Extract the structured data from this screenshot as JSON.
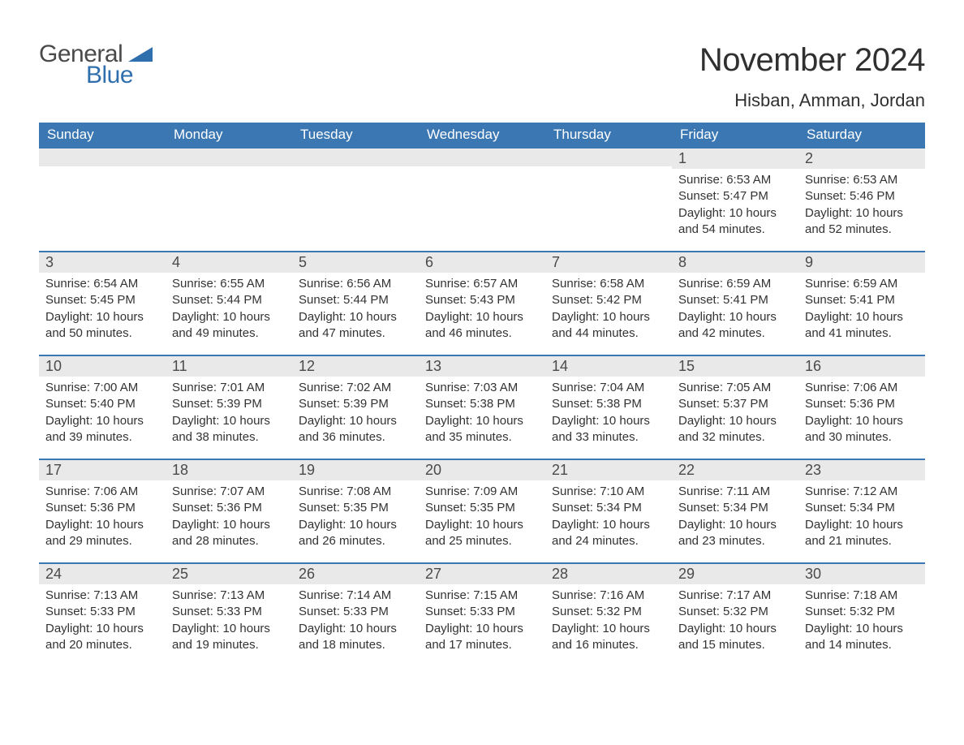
{
  "brand": {
    "word1": "General",
    "word2": "Blue",
    "color_text": "#4a4a4a",
    "color_blue": "#2f6fae"
  },
  "title": "November 2024",
  "location": "Hisban, Amman, Jordan",
  "colors": {
    "header_bg": "#3b77b3",
    "header_text": "#ffffff",
    "daynum_bg": "#e9e9e9",
    "border_top": "#3b77b3",
    "body_text": "#333333"
  },
  "day_headers": [
    "Sunday",
    "Monday",
    "Tuesday",
    "Wednesday",
    "Thursday",
    "Friday",
    "Saturday"
  ],
  "weeks": [
    [
      {
        "n": "",
        "sunrise": "",
        "sunset": "",
        "daylight": ""
      },
      {
        "n": "",
        "sunrise": "",
        "sunset": "",
        "daylight": ""
      },
      {
        "n": "",
        "sunrise": "",
        "sunset": "",
        "daylight": ""
      },
      {
        "n": "",
        "sunrise": "",
        "sunset": "",
        "daylight": ""
      },
      {
        "n": "",
        "sunrise": "",
        "sunset": "",
        "daylight": ""
      },
      {
        "n": "1",
        "sunrise": "Sunrise: 6:53 AM",
        "sunset": "Sunset: 5:47 PM",
        "daylight": "Daylight: 10 hours and 54 minutes."
      },
      {
        "n": "2",
        "sunrise": "Sunrise: 6:53 AM",
        "sunset": "Sunset: 5:46 PM",
        "daylight": "Daylight: 10 hours and 52 minutes."
      }
    ],
    [
      {
        "n": "3",
        "sunrise": "Sunrise: 6:54 AM",
        "sunset": "Sunset: 5:45 PM",
        "daylight": "Daylight: 10 hours and 50 minutes."
      },
      {
        "n": "4",
        "sunrise": "Sunrise: 6:55 AM",
        "sunset": "Sunset: 5:44 PM",
        "daylight": "Daylight: 10 hours and 49 minutes."
      },
      {
        "n": "5",
        "sunrise": "Sunrise: 6:56 AM",
        "sunset": "Sunset: 5:44 PM",
        "daylight": "Daylight: 10 hours and 47 minutes."
      },
      {
        "n": "6",
        "sunrise": "Sunrise: 6:57 AM",
        "sunset": "Sunset: 5:43 PM",
        "daylight": "Daylight: 10 hours and 46 minutes."
      },
      {
        "n": "7",
        "sunrise": "Sunrise: 6:58 AM",
        "sunset": "Sunset: 5:42 PM",
        "daylight": "Daylight: 10 hours and 44 minutes."
      },
      {
        "n": "8",
        "sunrise": "Sunrise: 6:59 AM",
        "sunset": "Sunset: 5:41 PM",
        "daylight": "Daylight: 10 hours and 42 minutes."
      },
      {
        "n": "9",
        "sunrise": "Sunrise: 6:59 AM",
        "sunset": "Sunset: 5:41 PM",
        "daylight": "Daylight: 10 hours and 41 minutes."
      }
    ],
    [
      {
        "n": "10",
        "sunrise": "Sunrise: 7:00 AM",
        "sunset": "Sunset: 5:40 PM",
        "daylight": "Daylight: 10 hours and 39 minutes."
      },
      {
        "n": "11",
        "sunrise": "Sunrise: 7:01 AM",
        "sunset": "Sunset: 5:39 PM",
        "daylight": "Daylight: 10 hours and 38 minutes."
      },
      {
        "n": "12",
        "sunrise": "Sunrise: 7:02 AM",
        "sunset": "Sunset: 5:39 PM",
        "daylight": "Daylight: 10 hours and 36 minutes."
      },
      {
        "n": "13",
        "sunrise": "Sunrise: 7:03 AM",
        "sunset": "Sunset: 5:38 PM",
        "daylight": "Daylight: 10 hours and 35 minutes."
      },
      {
        "n": "14",
        "sunrise": "Sunrise: 7:04 AM",
        "sunset": "Sunset: 5:38 PM",
        "daylight": "Daylight: 10 hours and 33 minutes."
      },
      {
        "n": "15",
        "sunrise": "Sunrise: 7:05 AM",
        "sunset": "Sunset: 5:37 PM",
        "daylight": "Daylight: 10 hours and 32 minutes."
      },
      {
        "n": "16",
        "sunrise": "Sunrise: 7:06 AM",
        "sunset": "Sunset: 5:36 PM",
        "daylight": "Daylight: 10 hours and 30 minutes."
      }
    ],
    [
      {
        "n": "17",
        "sunrise": "Sunrise: 7:06 AM",
        "sunset": "Sunset: 5:36 PM",
        "daylight": "Daylight: 10 hours and 29 minutes."
      },
      {
        "n": "18",
        "sunrise": "Sunrise: 7:07 AM",
        "sunset": "Sunset: 5:36 PM",
        "daylight": "Daylight: 10 hours and 28 minutes."
      },
      {
        "n": "19",
        "sunrise": "Sunrise: 7:08 AM",
        "sunset": "Sunset: 5:35 PM",
        "daylight": "Daylight: 10 hours and 26 minutes."
      },
      {
        "n": "20",
        "sunrise": "Sunrise: 7:09 AM",
        "sunset": "Sunset: 5:35 PM",
        "daylight": "Daylight: 10 hours and 25 minutes."
      },
      {
        "n": "21",
        "sunrise": "Sunrise: 7:10 AM",
        "sunset": "Sunset: 5:34 PM",
        "daylight": "Daylight: 10 hours and 24 minutes."
      },
      {
        "n": "22",
        "sunrise": "Sunrise: 7:11 AM",
        "sunset": "Sunset: 5:34 PM",
        "daylight": "Daylight: 10 hours and 23 minutes."
      },
      {
        "n": "23",
        "sunrise": "Sunrise: 7:12 AM",
        "sunset": "Sunset: 5:34 PM",
        "daylight": "Daylight: 10 hours and 21 minutes."
      }
    ],
    [
      {
        "n": "24",
        "sunrise": "Sunrise: 7:13 AM",
        "sunset": "Sunset: 5:33 PM",
        "daylight": "Daylight: 10 hours and 20 minutes."
      },
      {
        "n": "25",
        "sunrise": "Sunrise: 7:13 AM",
        "sunset": "Sunset: 5:33 PM",
        "daylight": "Daylight: 10 hours and 19 minutes."
      },
      {
        "n": "26",
        "sunrise": "Sunrise: 7:14 AM",
        "sunset": "Sunset: 5:33 PM",
        "daylight": "Daylight: 10 hours and 18 minutes."
      },
      {
        "n": "27",
        "sunrise": "Sunrise: 7:15 AM",
        "sunset": "Sunset: 5:33 PM",
        "daylight": "Daylight: 10 hours and 17 minutes."
      },
      {
        "n": "28",
        "sunrise": "Sunrise: 7:16 AM",
        "sunset": "Sunset: 5:32 PM",
        "daylight": "Daylight: 10 hours and 16 minutes."
      },
      {
        "n": "29",
        "sunrise": "Sunrise: 7:17 AM",
        "sunset": "Sunset: 5:32 PM",
        "daylight": "Daylight: 10 hours and 15 minutes."
      },
      {
        "n": "30",
        "sunrise": "Sunrise: 7:18 AM",
        "sunset": "Sunset: 5:32 PM",
        "daylight": "Daylight: 10 hours and 14 minutes."
      }
    ]
  ]
}
